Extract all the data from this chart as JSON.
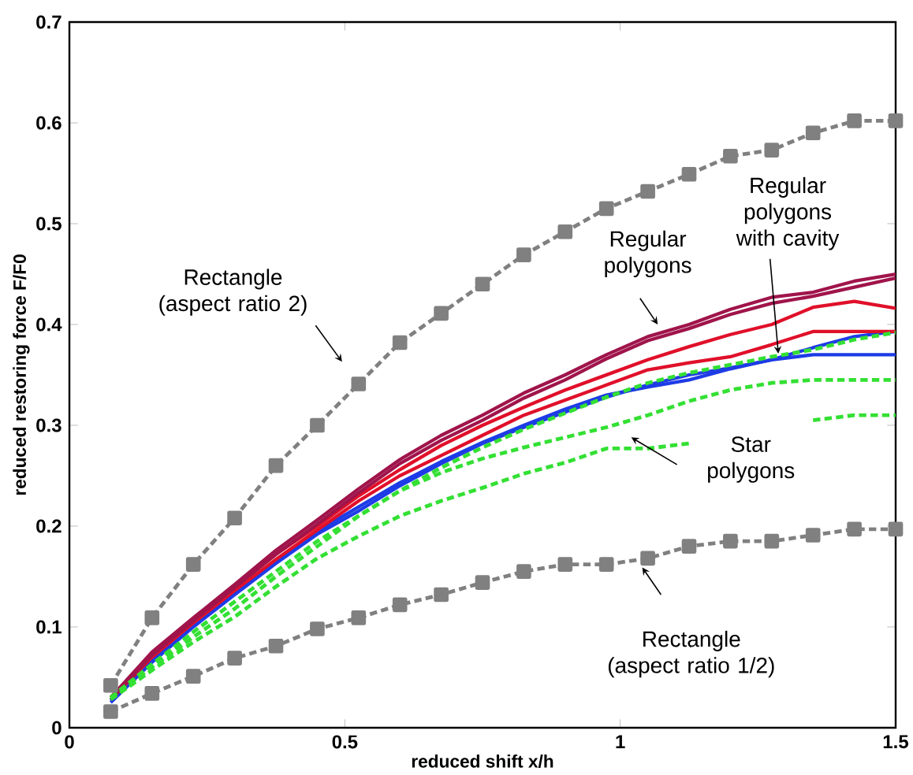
{
  "chart_data": {
    "type": "line",
    "xlabel": "reduced shift x/h",
    "ylabel": "reduced restoring force F/F0",
    "x": [
      0.075,
      0.15,
      0.225,
      0.3,
      0.375,
      0.45,
      0.525,
      0.6,
      0.675,
      0.75,
      0.825,
      0.9,
      0.975,
      1.05,
      1.125,
      1.2,
      1.275,
      1.35,
      1.425,
      1.5
    ],
    "xlim": [
      0,
      1.5
    ],
    "ylim": [
      0,
      0.7
    ],
    "xticks": [
      0,
      0.5,
      1,
      1.5
    ],
    "yticks": [
      0,
      0.1,
      0.2,
      0.3,
      0.4,
      0.5,
      0.6,
      0.7
    ],
    "grid": false,
    "series": [
      {
        "color": "#808080",
        "line_style": "dashed",
        "marker": "square",
        "values": [
          0.042,
          0.109,
          0.162,
          0.208,
          0.26,
          0.3,
          0.341,
          0.382,
          0.411,
          0.44,
          0.469,
          0.492,
          0.515,
          0.532,
          0.549,
          0.567,
          0.573,
          0.59,
          0.602,
          0.602
        ]
      },
      {
        "color": "#808080",
        "line_style": "dashed",
        "marker": "square",
        "values": [
          0.016,
          0.034,
          0.051,
          0.069,
          0.081,
          0.098,
          0.109,
          0.122,
          0.132,
          0.144,
          0.155,
          0.162,
          0.162,
          0.168,
          0.18,
          0.185,
          0.185,
          0.191,
          0.197,
          0.197
        ]
      },
      {
        "color": "#1e3ce6",
        "line_style": "solid",
        "values": [
          0.025,
          0.065,
          0.1,
          0.132,
          0.163,
          0.192,
          0.215,
          0.24,
          0.262,
          0.282,
          0.298,
          0.313,
          0.328,
          0.34,
          0.35,
          0.357,
          0.365,
          0.377,
          0.388,
          0.393
        ]
      },
      {
        "color": "#1e3ce6",
        "line_style": "solid",
        "values": [
          0.027,
          0.067,
          0.102,
          0.135,
          0.166,
          0.195,
          0.219,
          0.243,
          0.264,
          0.283,
          0.3,
          0.316,
          0.33,
          0.338,
          0.345,
          0.356,
          0.365,
          0.37,
          0.37,
          0.37
        ]
      },
      {
        "color": "#e0102a",
        "line_style": "solid",
        "values": [
          0.028,
          0.07,
          0.104,
          0.136,
          0.167,
          0.196,
          0.225,
          0.25,
          0.27,
          0.29,
          0.31,
          0.325,
          0.34,
          0.355,
          0.362,
          0.368,
          0.38,
          0.393,
          0.393,
          0.393
        ]
      },
      {
        "color": "#e0102a",
        "line_style": "solid",
        "values": [
          0.03,
          0.072,
          0.107,
          0.14,
          0.172,
          0.2,
          0.23,
          0.256,
          0.28,
          0.3,
          0.318,
          0.335,
          0.35,
          0.365,
          0.378,
          0.39,
          0.4,
          0.417,
          0.423,
          0.416
        ]
      },
      {
        "color": "#a0144b",
        "line_style": "solid",
        "values": [
          0.028,
          0.072,
          0.106,
          0.139,
          0.172,
          0.202,
          0.233,
          0.262,
          0.285,
          0.305,
          0.327,
          0.345,
          0.366,
          0.384,
          0.396,
          0.41,
          0.421,
          0.428,
          0.437,
          0.446
        ]
      },
      {
        "color": "#a0144b",
        "line_style": "solid",
        "values": [
          0.03,
          0.075,
          0.109,
          0.142,
          0.176,
          0.206,
          0.237,
          0.266,
          0.29,
          0.31,
          0.332,
          0.35,
          0.37,
          0.388,
          0.4,
          0.415,
          0.427,
          0.432,
          0.443,
          0.45
        ]
      },
      {
        "color": "#33e033",
        "line_style": "dashed",
        "values": [
          0.03,
          0.063,
          0.095,
          0.125,
          0.155,
          0.185,
          0.21,
          0.235,
          0.258,
          0.278,
          0.296,
          0.312,
          0.328,
          0.342,
          0.352,
          0.36,
          0.368,
          0.375,
          0.385,
          0.392
        ]
      },
      {
        "color": "#33e033",
        "line_style": "dashed",
        "values": [
          0.03,
          0.06,
          0.09,
          0.118,
          0.15,
          0.18,
          0.21,
          0.235,
          0.253,
          0.267,
          0.278,
          0.288,
          0.298,
          0.31,
          0.324,
          0.335,
          0.342,
          0.345,
          0.345,
          0.345
        ]
      },
      {
        "color": "#33e033",
        "line_style": "dashed",
        "values": [
          0.028,
          0.057,
          0.085,
          0.11,
          0.14,
          0.168,
          0.19,
          0.21,
          0.225,
          0.238,
          0.252,
          0.263,
          0.277,
          0.277,
          0.282,
          null,
          null,
          null,
          null,
          null
        ]
      },
      {
        "color": "#33e033",
        "line_style": "dashed",
        "x": [
          1.35,
          1.425,
          1.5
        ],
        "values": [
          0.305,
          0.31,
          0.31
        ]
      }
    ],
    "annotations": [
      "Rectangle (aspect ratio 2)",
      "Regular polygons",
      {
        "text": "Regular polygons with cavity",
        "x": 1.287,
        "y": 0.371
      },
      "Star polygons",
      "Rectangle (aspect ratio 1/2)"
    ]
  }
}
